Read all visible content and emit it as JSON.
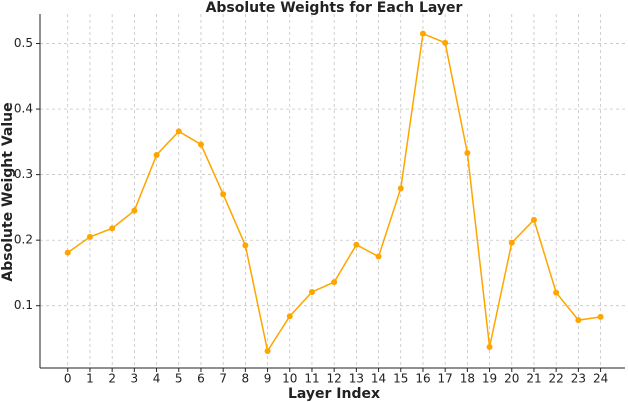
{
  "chart_data": {
    "type": "line",
    "title": "Absolute Weights for Each Layer",
    "x_label": "Layer Index",
    "y_label": "Absolute Weight Value",
    "x": [
      0,
      1,
      2,
      3,
      4,
      5,
      6,
      7,
      8,
      9,
      10,
      11,
      12,
      13,
      14,
      15,
      16,
      17,
      18,
      19,
      20,
      21,
      22,
      23,
      24
    ],
    "series": [
      {
        "name": "Absolute Weight",
        "color": "#ffa500",
        "values": [
          0.181,
          0.205,
          0.218,
          0.245,
          0.33,
          0.366,
          0.346,
          0.27,
          0.192,
          0.031,
          0.084,
          0.121,
          0.136,
          0.193,
          0.175,
          0.279,
          0.515,
          0.501,
          0.333,
          0.037,
          0.196,
          0.231,
          0.12,
          0.078,
          0.083
        ]
      }
    ],
    "xlim": [
      -1.25,
      25.1
    ],
    "ylim": [
      0.005,
      0.545
    ],
    "xticks": [
      0,
      1,
      2,
      3,
      4,
      5,
      6,
      7,
      8,
      9,
      10,
      11,
      12,
      13,
      14,
      15,
      16,
      17,
      18,
      19,
      20,
      21,
      22,
      23,
      24
    ],
    "yticks": [
      0.1,
      0.2,
      0.3,
      0.4,
      0.5
    ],
    "grid": true
  }
}
